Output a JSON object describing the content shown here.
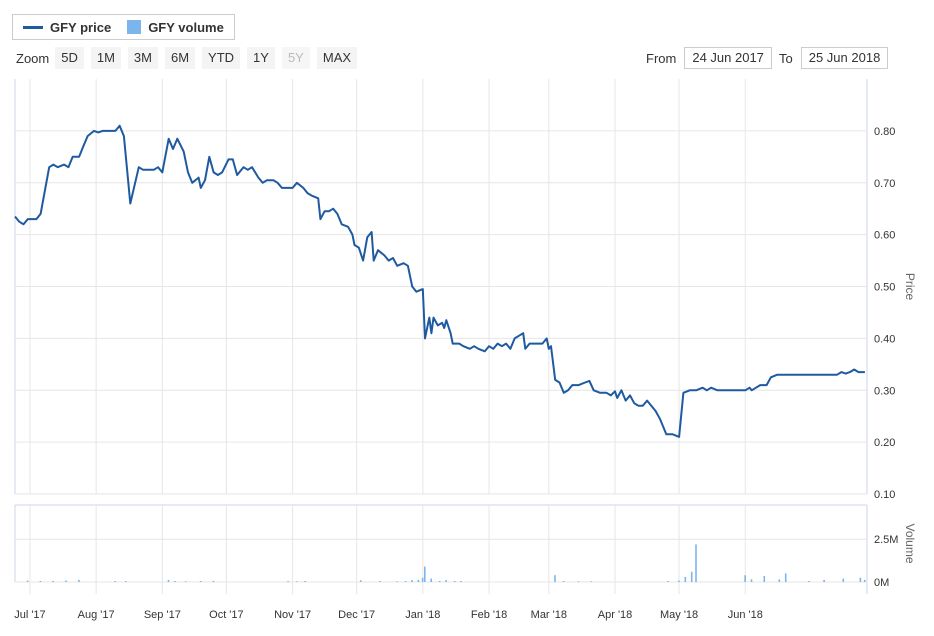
{
  "legend": [
    {
      "label": "GFY price",
      "swatch": "line",
      "color": "#1f5aa1"
    },
    {
      "label": "GFY volume",
      "swatch": "box",
      "color": "#7cb5ec"
    }
  ],
  "toolbar": {
    "zoom_label": "Zoom",
    "buttons": [
      {
        "label": "5D",
        "state": "enabled"
      },
      {
        "label": "1M",
        "state": "enabled"
      },
      {
        "label": "3M",
        "state": "enabled"
      },
      {
        "label": "6M",
        "state": "enabled"
      },
      {
        "label": "YTD",
        "state": "enabled"
      },
      {
        "label": "1Y",
        "state": "enabled"
      },
      {
        "label": "5Y",
        "state": "disabled"
      },
      {
        "label": "MAX",
        "state": "enabled"
      }
    ]
  },
  "range": {
    "from_label": "From",
    "from_value": "24 Jun 2017",
    "to_label": "To",
    "to_value": "25 Jun 2018"
  },
  "chart_data": [
    {
      "type": "line",
      "title": "",
      "series": [
        {
          "name": "GFY price",
          "color": "#1f5aa1"
        }
      ],
      "ylabel": "Price",
      "ylim": [
        0.1,
        0.9
      ],
      "yticks": [
        "0.10",
        "0.20",
        "0.30",
        "0.40",
        "0.50",
        "0.60",
        "0.70",
        "0.80"
      ],
      "grid": true,
      "points": [
        [
          "2017-06-24",
          0.635
        ],
        [
          "2017-06-26",
          0.625
        ],
        [
          "2017-06-28",
          0.62
        ],
        [
          "2017-06-30",
          0.63
        ],
        [
          "2017-07-04",
          0.63
        ],
        [
          "2017-07-06",
          0.64
        ],
        [
          "2017-07-10",
          0.73
        ],
        [
          "2017-07-12",
          0.735
        ],
        [
          "2017-07-14",
          0.73
        ],
        [
          "2017-07-17",
          0.735
        ],
        [
          "2017-07-19",
          0.73
        ],
        [
          "2017-07-21",
          0.75
        ],
        [
          "2017-07-24",
          0.75
        ],
        [
          "2017-07-26",
          0.77
        ],
        [
          "2017-07-28",
          0.79
        ],
        [
          "2017-07-31",
          0.8
        ],
        [
          "2017-08-02",
          0.797
        ],
        [
          "2017-08-04",
          0.8
        ],
        [
          "2017-08-08",
          0.8
        ],
        [
          "2017-08-10",
          0.8
        ],
        [
          "2017-08-12",
          0.81
        ],
        [
          "2017-08-14",
          0.79
        ],
        [
          "2017-08-17",
          0.66
        ],
        [
          "2017-08-21",
          0.73
        ],
        [
          "2017-08-23",
          0.725
        ],
        [
          "2017-08-28",
          0.725
        ],
        [
          "2017-08-30",
          0.73
        ],
        [
          "2017-09-01",
          0.72
        ],
        [
          "2017-09-04",
          0.785
        ],
        [
          "2017-09-06",
          0.765
        ],
        [
          "2017-09-08",
          0.785
        ],
        [
          "2017-09-11",
          0.76
        ],
        [
          "2017-09-13",
          0.72
        ],
        [
          "2017-09-15",
          0.7
        ],
        [
          "2017-09-18",
          0.71
        ],
        [
          "2017-09-19",
          0.69
        ],
        [
          "2017-09-21",
          0.705
        ],
        [
          "2017-09-23",
          0.75
        ],
        [
          "2017-09-25",
          0.72
        ],
        [
          "2017-09-27",
          0.715
        ],
        [
          "2017-09-29",
          0.72
        ],
        [
          "2017-10-02",
          0.745
        ],
        [
          "2017-10-04",
          0.745
        ],
        [
          "2017-10-06",
          0.715
        ],
        [
          "2017-10-09",
          0.73
        ],
        [
          "2017-10-11",
          0.725
        ],
        [
          "2017-10-13",
          0.73
        ],
        [
          "2017-10-16",
          0.71
        ],
        [
          "2017-10-18",
          0.7
        ],
        [
          "2017-10-20",
          0.705
        ],
        [
          "2017-10-23",
          0.705
        ],
        [
          "2017-10-25",
          0.7
        ],
        [
          "2017-10-27",
          0.69
        ],
        [
          "2017-10-30",
          0.69
        ],
        [
          "2017-11-01",
          0.69
        ],
        [
          "2017-11-03",
          0.7
        ],
        [
          "2017-11-06",
          0.69
        ],
        [
          "2017-11-08",
          0.68
        ],
        [
          "2017-11-10",
          0.675
        ],
        [
          "2017-11-13",
          0.67
        ],
        [
          "2017-11-14",
          0.63
        ],
        [
          "2017-11-16",
          0.645
        ],
        [
          "2017-11-18",
          0.645
        ],
        [
          "2017-11-20",
          0.65
        ],
        [
          "2017-11-22",
          0.64
        ],
        [
          "2017-11-24",
          0.62
        ],
        [
          "2017-11-27",
          0.615
        ],
        [
          "2017-11-29",
          0.6
        ],
        [
          "2017-11-30",
          0.58
        ],
        [
          "2017-12-02",
          0.575
        ],
        [
          "2017-12-04",
          0.55
        ],
        [
          "2017-12-06",
          0.595
        ],
        [
          "2017-12-08",
          0.605
        ],
        [
          "2017-12-09",
          0.55
        ],
        [
          "2017-12-11",
          0.57
        ],
        [
          "2017-12-14",
          0.56
        ],
        [
          "2017-12-16",
          0.55
        ],
        [
          "2017-12-18",
          0.555
        ],
        [
          "2017-12-20",
          0.54
        ],
        [
          "2017-12-23",
          0.545
        ],
        [
          "2017-12-25",
          0.54
        ],
        [
          "2017-12-27",
          0.5
        ],
        [
          "2017-12-29",
          0.49
        ],
        [
          "2018-01-01",
          0.495
        ],
        [
          "2018-01-02",
          0.4
        ],
        [
          "2018-01-04",
          0.44
        ],
        [
          "2018-01-05",
          0.41
        ],
        [
          "2018-01-06",
          0.44
        ],
        [
          "2018-01-08",
          0.425
        ],
        [
          "2018-01-10",
          0.43
        ],
        [
          "2018-01-11",
          0.42
        ],
        [
          "2018-01-12",
          0.435
        ],
        [
          "2018-01-14",
          0.41
        ],
        [
          "2018-01-15",
          0.39
        ],
        [
          "2018-01-18",
          0.39
        ],
        [
          "2018-01-20",
          0.385
        ],
        [
          "2018-01-23",
          0.38
        ],
        [
          "2018-01-25",
          0.385
        ],
        [
          "2018-01-27",
          0.38
        ],
        [
          "2018-01-30",
          0.375
        ],
        [
          "2018-02-01",
          0.385
        ],
        [
          "2018-02-03",
          0.38
        ],
        [
          "2018-02-05",
          0.39
        ],
        [
          "2018-02-07",
          0.385
        ],
        [
          "2018-02-09",
          0.39
        ],
        [
          "2018-02-11",
          0.38
        ],
        [
          "2018-02-13",
          0.4
        ],
        [
          "2018-02-15",
          0.405
        ],
        [
          "2018-02-17",
          0.41
        ],
        [
          "2018-02-18",
          0.38
        ],
        [
          "2018-02-20",
          0.39
        ],
        [
          "2018-02-22",
          0.39
        ],
        [
          "2018-02-26",
          0.39
        ],
        [
          "2018-02-28",
          0.4
        ],
        [
          "2018-03-01",
          0.38
        ],
        [
          "2018-03-02",
          0.385
        ],
        [
          "2018-03-04",
          0.32
        ],
        [
          "2018-03-06",
          0.315
        ],
        [
          "2018-03-08",
          0.295
        ],
        [
          "2018-03-10",
          0.3
        ],
        [
          "2018-03-12",
          0.31
        ],
        [
          "2018-03-15",
          0.31
        ],
        [
          "2018-03-18",
          0.315
        ],
        [
          "2018-03-20",
          0.318
        ],
        [
          "2018-03-22",
          0.3
        ],
        [
          "2018-03-25",
          0.295
        ],
        [
          "2018-03-28",
          0.295
        ],
        [
          "2018-03-30",
          0.29
        ],
        [
          "2018-04-01",
          0.298
        ],
        [
          "2018-04-02",
          0.285
        ],
        [
          "2018-04-04",
          0.3
        ],
        [
          "2018-04-06",
          0.28
        ],
        [
          "2018-04-08",
          0.29
        ],
        [
          "2018-04-10",
          0.275
        ],
        [
          "2018-04-12",
          0.27
        ],
        [
          "2018-04-14",
          0.27
        ],
        [
          "2018-04-16",
          0.28
        ],
        [
          "2018-04-18",
          0.27
        ],
        [
          "2018-04-20",
          0.26
        ],
        [
          "2018-04-22",
          0.245
        ],
        [
          "2018-04-25",
          0.215
        ],
        [
          "2018-04-28",
          0.215
        ],
        [
          "2018-05-01",
          0.21
        ],
        [
          "2018-05-03",
          0.295
        ],
        [
          "2018-05-06",
          0.3
        ],
        [
          "2018-05-09",
          0.3
        ],
        [
          "2018-05-12",
          0.305
        ],
        [
          "2018-05-14",
          0.3
        ],
        [
          "2018-05-16",
          0.305
        ],
        [
          "2018-05-19",
          0.3
        ],
        [
          "2018-05-22",
          0.3
        ],
        [
          "2018-05-26",
          0.3
        ],
        [
          "2018-05-30",
          0.3
        ],
        [
          "2018-06-01",
          0.3
        ],
        [
          "2018-06-03",
          0.305
        ],
        [
          "2018-06-04",
          0.3
        ],
        [
          "2018-06-06",
          0.305
        ],
        [
          "2018-06-08",
          0.31
        ],
        [
          "2018-06-11",
          0.31
        ],
        [
          "2018-06-13",
          0.325
        ],
        [
          "2018-06-16",
          0.33
        ],
        [
          "2018-06-18",
          0.33
        ],
        [
          "2018-06-22",
          0.33
        ],
        [
          "2018-06-26",
          0.33
        ],
        [
          "2018-06-30",
          0.33
        ],
        [
          "2018-07-03",
          0.33
        ],
        [
          "2018-07-06",
          0.33
        ],
        [
          "2018-07-09",
          0.33
        ],
        [
          "2018-07-12",
          0.33
        ],
        [
          "2018-07-14",
          0.33
        ],
        [
          "2018-07-16",
          0.335
        ],
        [
          "2018-07-18",
          0.332
        ],
        [
          "2018-07-20",
          0.335
        ],
        [
          "2018-07-22",
          0.34
        ],
        [
          "2018-07-24",
          0.335
        ],
        [
          "2018-07-27",
          0.335
        ]
      ]
    },
    {
      "type": "bar",
      "title": "",
      "series": [
        {
          "name": "GFY volume",
          "color": "#7cb5ec"
        }
      ],
      "ylabel": "Volume",
      "ylim": [
        0,
        4500000
      ],
      "yticks": [
        "0M",
        "2.5M"
      ],
      "grid": true,
      "points": [
        [
          "2017-06-30",
          80000
        ],
        [
          "2017-07-06",
          60000
        ],
        [
          "2017-07-12",
          70000
        ],
        [
          "2017-07-18",
          90000
        ],
        [
          "2017-07-24",
          120000
        ],
        [
          "2017-08-10",
          60000
        ],
        [
          "2017-08-15",
          60000
        ],
        [
          "2017-09-04",
          120000
        ],
        [
          "2017-09-07",
          60000
        ],
        [
          "2017-09-12",
          40000
        ],
        [
          "2017-09-19",
          60000
        ],
        [
          "2017-09-25",
          70000
        ],
        [
          "2017-10-30",
          50000
        ],
        [
          "2017-11-03",
          40000
        ],
        [
          "2017-11-07",
          60000
        ],
        [
          "2017-12-03",
          100000
        ],
        [
          "2017-12-12",
          60000
        ],
        [
          "2017-12-20",
          40000
        ],
        [
          "2017-12-24",
          60000
        ],
        [
          "2017-12-27",
          110000
        ],
        [
          "2017-12-30",
          130000
        ],
        [
          "2018-01-01",
          250000
        ],
        [
          "2018-01-02",
          900000
        ],
        [
          "2018-01-05",
          200000
        ],
        [
          "2018-01-09",
          60000
        ],
        [
          "2018-01-12",
          110000
        ],
        [
          "2018-01-16",
          60000
        ],
        [
          "2018-01-19",
          60000
        ],
        [
          "2018-03-04",
          400000
        ],
        [
          "2018-03-08",
          60000
        ],
        [
          "2018-03-15",
          40000
        ],
        [
          "2018-03-21",
          40000
        ],
        [
          "2018-04-26",
          60000
        ],
        [
          "2018-05-01",
          80000
        ],
        [
          "2018-05-04",
          300000
        ],
        [
          "2018-05-07",
          600000
        ],
        [
          "2018-05-09",
          2200000
        ],
        [
          "2018-06-01",
          400000
        ],
        [
          "2018-06-04",
          160000
        ],
        [
          "2018-06-10",
          350000
        ],
        [
          "2018-06-17",
          150000
        ],
        [
          "2018-06-20",
          500000
        ],
        [
          "2018-07-01",
          60000
        ],
        [
          "2018-07-08",
          120000
        ],
        [
          "2018-07-17",
          200000
        ],
        [
          "2018-07-25",
          250000
        ],
        [
          "2018-07-27",
          120000
        ]
      ]
    }
  ],
  "x_axis": {
    "ticks": [
      {
        "label": "Jul '17",
        "date": "2017-07-01"
      },
      {
        "label": "Aug '17",
        "date": "2017-08-01"
      },
      {
        "label": "Sep '17",
        "date": "2017-09-01"
      },
      {
        "label": "Oct '17",
        "date": "2017-10-01"
      },
      {
        "label": "Nov '17",
        "date": "2017-11-01"
      },
      {
        "label": "Dec '17",
        "date": "2017-12-01"
      },
      {
        "label": "Jan '18",
        "date": "2018-01-01"
      },
      {
        "label": "Feb '18",
        "date": "2018-02-01"
      },
      {
        "label": "Mar '18",
        "date": "2018-03-01"
      },
      {
        "label": "Apr '18",
        "date": "2018-04-01"
      },
      {
        "label": "May '18",
        "date": "2018-05-01"
      },
      {
        "label": "Jun '18",
        "date": "2018-06-01"
      }
    ],
    "range": [
      "2017-06-24",
      "2018-07-28"
    ]
  }
}
